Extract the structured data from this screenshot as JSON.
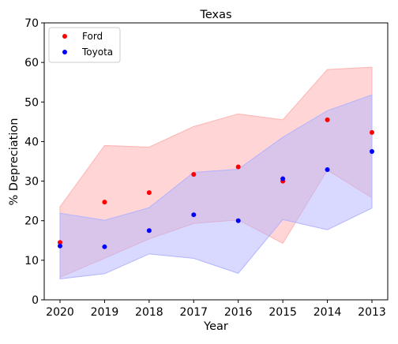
{
  "chart_data": {
    "type": "scatter",
    "title": "Texas",
    "xlabel": "Year",
    "ylabel": "% Depreciation",
    "categories": [
      "2020",
      "2019",
      "2018",
      "2017",
      "2016",
      "2015",
      "2014",
      "2013"
    ],
    "ylim": [
      0,
      70
    ],
    "yticks": [
      0,
      10,
      20,
      30,
      40,
      50,
      60,
      70
    ],
    "grid": false,
    "legend_position": "top-left",
    "series": [
      {
        "name": "Ford",
        "color": "#ff0000",
        "band_color": "#ffb3b3",
        "values": [
          14.5,
          24.7,
          27.1,
          31.7,
          33.6,
          30.0,
          45.5,
          42.3
        ],
        "band_upper": [
          23.5,
          39.0,
          38.6,
          43.8,
          47.0,
          45.5,
          58.2,
          58.8
        ],
        "band_lower": [
          5.7,
          10.5,
          15.4,
          19.3,
          20.2,
          14.3,
          32.8,
          25.8
        ]
      },
      {
        "name": "Toyota",
        "color": "#0000ff",
        "band_color": "#b3b3ff",
        "values": [
          13.6,
          13.4,
          17.5,
          21.5,
          20.0,
          30.6,
          32.9,
          37.5
        ],
        "band_upper": [
          21.9,
          20.1,
          23.3,
          32.2,
          33.0,
          41.1,
          47.8,
          51.8
        ],
        "band_lower": [
          5.3,
          6.6,
          11.6,
          10.5,
          6.7,
          20.3,
          17.7,
          23.2
        ]
      }
    ]
  }
}
